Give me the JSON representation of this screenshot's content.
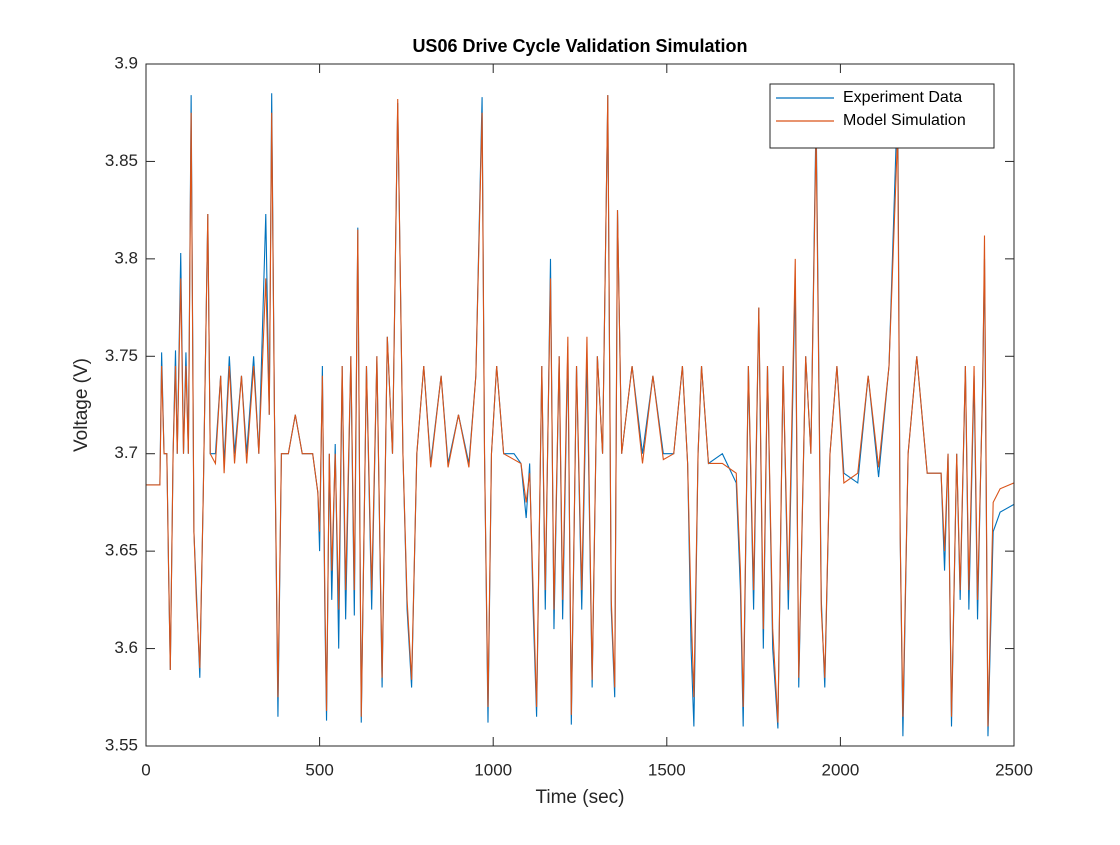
{
  "chart_data": {
    "type": "line",
    "title": "US06 Drive Cycle Validation Simulation",
    "x_label": "Time (sec)",
    "y_label": "Voltage (V)",
    "xlim": [
      0,
      2500
    ],
    "xticks": [
      0,
      500,
      1000,
      1500,
      2000,
      2500
    ],
    "ylim": [
      3.55,
      3.9
    ],
    "yticks": [
      3.55,
      3.6,
      3.65,
      3.7,
      3.75,
      3.8,
      3.85,
      3.9
    ],
    "legend": "northeast",
    "x": [
      0,
      40,
      45,
      52,
      60,
      65,
      70,
      78,
      85,
      90,
      100,
      108,
      115,
      122,
      130,
      138,
      145,
      155,
      165,
      178,
      185,
      200,
      215,
      225,
      240,
      255,
      275,
      290,
      310,
      325,
      345,
      355,
      362,
      370,
      380,
      390,
      410,
      430,
      450,
      480,
      495,
      500,
      508,
      515,
      520,
      528,
      535,
      545,
      555,
      565,
      575,
      590,
      600,
      610,
      620,
      635,
      650,
      665,
      680,
      695,
      710,
      725,
      740,
      752,
      765,
      780,
      800,
      820,
      850,
      870,
      900,
      930,
      950,
      968,
      975,
      985,
      995,
      1010,
      1030,
      1060,
      1080,
      1095,
      1105,
      1115,
      1125,
      1140,
      1150,
      1165,
      1175,
      1190,
      1200,
      1215,
      1225,
      1240,
      1255,
      1270,
      1285,
      1300,
      1315,
      1330,
      1340,
      1350,
      1358,
      1370,
      1400,
      1430,
      1460,
      1490,
      1520,
      1545,
      1560,
      1570,
      1578,
      1590,
      1600,
      1620,
      1660,
      1700,
      1712,
      1720,
      1735,
      1750,
      1765,
      1778,
      1790,
      1805,
      1820,
      1835,
      1850,
      1870,
      1880,
      1900,
      1915,
      1930,
      1945,
      1955,
      1970,
      1990,
      2010,
      2050,
      2080,
      2110,
      2140,
      2165,
      2172,
      2180,
      2195,
      2220,
      2250,
      2290,
      2300,
      2310,
      2320,
      2335,
      2345,
      2360,
      2370,
      2385,
      2395,
      2410,
      2415,
      2425,
      2440,
      2460,
      2500
    ],
    "series": [
      {
        "name": "Experiment Data",
        "color": "#0072bd",
        "values": [
          3.684,
          3.684,
          3.752,
          3.7,
          3.7,
          3.64,
          3.589,
          3.7,
          3.753,
          3.7,
          3.803,
          3.7,
          3.752,
          3.7,
          3.884,
          3.66,
          3.63,
          3.585,
          3.68,
          3.823,
          3.7,
          3.7,
          3.74,
          3.695,
          3.75,
          3.7,
          3.74,
          3.7,
          3.75,
          3.7,
          3.823,
          3.72,
          3.885,
          3.72,
          3.565,
          3.7,
          3.7,
          3.72,
          3.7,
          3.7,
          3.68,
          3.65,
          3.745,
          3.62,
          3.563,
          3.7,
          3.625,
          3.705,
          3.6,
          3.745,
          3.615,
          3.75,
          3.617,
          3.816,
          3.562,
          3.745,
          3.62,
          3.75,
          3.58,
          3.76,
          3.7,
          3.88,
          3.7,
          3.62,
          3.58,
          3.7,
          3.745,
          3.695,
          3.74,
          3.695,
          3.72,
          3.695,
          3.74,
          3.883,
          3.7,
          3.562,
          3.7,
          3.745,
          3.7,
          3.7,
          3.695,
          3.667,
          3.695,
          3.62,
          3.565,
          3.745,
          3.62,
          3.8,
          3.61,
          3.75,
          3.615,
          3.755,
          3.561,
          3.745,
          3.62,
          3.75,
          3.58,
          3.75,
          3.7,
          3.884,
          3.62,
          3.575,
          3.825,
          3.7,
          3.745,
          3.7,
          3.74,
          3.7,
          3.7,
          3.745,
          3.695,
          3.6,
          3.56,
          3.7,
          3.745,
          3.695,
          3.7,
          3.685,
          3.63,
          3.56,
          3.745,
          3.62,
          3.775,
          3.6,
          3.745,
          3.6,
          3.559,
          3.745,
          3.62,
          3.79,
          3.58,
          3.75,
          3.7,
          3.875,
          3.625,
          3.58,
          3.7,
          3.745,
          3.69,
          3.685,
          3.74,
          3.688,
          3.745,
          3.885,
          3.66,
          3.555,
          3.7,
          3.75,
          3.69,
          3.69,
          3.64,
          3.7,
          3.56,
          3.7,
          3.625,
          3.745,
          3.62,
          3.74,
          3.615,
          3.74,
          3.8,
          3.555,
          3.66,
          3.67,
          3.674
        ]
      },
      {
        "name": "Model Simulation",
        "color": "#d95319",
        "values": [
          3.684,
          3.684,
          3.745,
          3.7,
          3.7,
          3.642,
          3.589,
          3.7,
          3.745,
          3.7,
          3.79,
          3.7,
          3.745,
          3.7,
          3.875,
          3.66,
          3.625,
          3.59,
          3.68,
          3.823,
          3.7,
          3.695,
          3.74,
          3.69,
          3.745,
          3.695,
          3.74,
          3.695,
          3.745,
          3.7,
          3.79,
          3.72,
          3.875,
          3.72,
          3.575,
          3.7,
          3.7,
          3.72,
          3.7,
          3.7,
          3.68,
          3.66,
          3.74,
          3.63,
          3.568,
          3.7,
          3.64,
          3.7,
          3.62,
          3.745,
          3.63,
          3.75,
          3.63,
          3.815,
          3.565,
          3.745,
          3.63,
          3.75,
          3.585,
          3.76,
          3.7,
          3.882,
          3.7,
          3.625,
          3.584,
          3.7,
          3.745,
          3.693,
          3.74,
          3.693,
          3.72,
          3.693,
          3.74,
          3.875,
          3.7,
          3.57,
          3.7,
          3.745,
          3.7,
          3.697,
          3.695,
          3.675,
          3.69,
          3.63,
          3.57,
          3.745,
          3.63,
          3.79,
          3.62,
          3.75,
          3.625,
          3.76,
          3.566,
          3.745,
          3.63,
          3.76,
          3.584,
          3.75,
          3.7,
          3.884,
          3.625,
          3.58,
          3.825,
          3.7,
          3.745,
          3.695,
          3.74,
          3.697,
          3.7,
          3.745,
          3.695,
          3.62,
          3.575,
          3.7,
          3.745,
          3.695,
          3.695,
          3.69,
          3.64,
          3.57,
          3.745,
          3.63,
          3.775,
          3.61,
          3.745,
          3.61,
          3.562,
          3.745,
          3.63,
          3.8,
          3.585,
          3.75,
          3.7,
          3.865,
          3.62,
          3.585,
          3.7,
          3.745,
          3.685,
          3.69,
          3.74,
          3.693,
          3.745,
          3.865,
          3.66,
          3.565,
          3.7,
          3.75,
          3.69,
          3.69,
          3.65,
          3.7,
          3.565,
          3.7,
          3.63,
          3.745,
          3.63,
          3.745,
          3.625,
          3.735,
          3.812,
          3.56,
          3.675,
          3.682,
          3.685
        ]
      }
    ]
  }
}
